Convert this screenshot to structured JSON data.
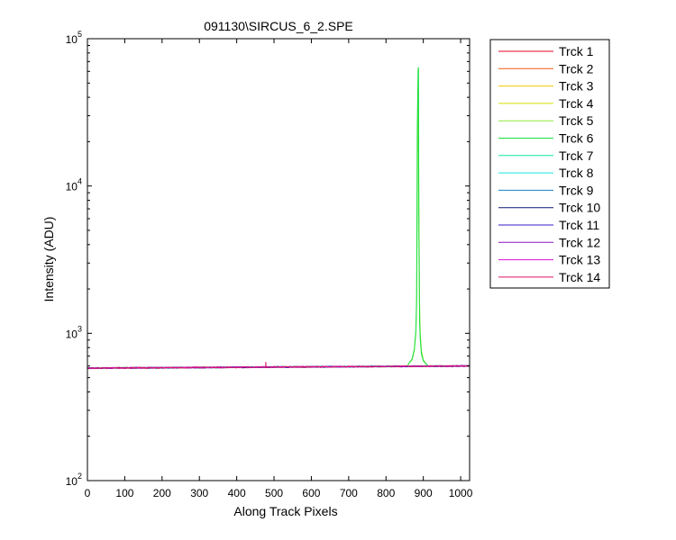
{
  "chart_data": {
    "type": "line",
    "title": "091130\\SIRCUS_6_2.SPE",
    "xlabel": "Along Track Pixels",
    "ylabel": "Intensity (ADU)",
    "xlim": [
      0,
      1024
    ],
    "ylim": [
      100,
      100000
    ],
    "yscale": "log",
    "grid": false,
    "legend_position": "outside-right",
    "x_ticks": [
      0,
      100,
      200,
      300,
      400,
      500,
      600,
      700,
      800,
      900,
      1000
    ],
    "x_tick_labels": [
      "0",
      "100",
      "200",
      "300",
      "400",
      "500",
      "600",
      "700",
      "800",
      "900",
      "1000"
    ],
    "y_ticks": [
      {
        "value": 100,
        "base": "10",
        "exp": "2"
      },
      {
        "value": 1000,
        "base": "10",
        "exp": "3"
      },
      {
        "value": 10000,
        "base": "10",
        "exp": "4"
      },
      {
        "value": 100000,
        "base": "10",
        "exp": "5"
      }
    ],
    "baseline": {
      "x": [
        0,
        1024
      ],
      "y": [
        580,
        600
      ]
    },
    "series": [
      {
        "name": "Trck 1",
        "color": "#e0002a"
      },
      {
        "name": "Trck 2",
        "color": "#ef5a0f"
      },
      {
        "name": "Trck 3",
        "color": "#f2c400"
      },
      {
        "name": "Trck 4",
        "color": "#d8e000"
      },
      {
        "name": "Trck 5",
        "color": "#8ee838",
        "peak": {
          "x": [
            860,
            870,
            876,
            880,
            882,
            884,
            886,
            888,
            890,
            892,
            895,
            900,
            910
          ],
          "y": [
            620,
            660,
            760,
            1000,
            1500,
            8000,
            60000,
            9000,
            1600,
            1000,
            760,
            660,
            610
          ]
        }
      },
      {
        "name": "Trck 6",
        "color": "#18e040",
        "peak": {
          "x": [
            860,
            870,
            876,
            880,
            882,
            884,
            886,
            887,
            888,
            890,
            892,
            895,
            900,
            910
          ],
          "y": [
            620,
            670,
            780,
            1050,
            1700,
            26000,
            62000,
            64000,
            5000,
            1200,
            900,
            720,
            650,
            610
          ]
        }
      },
      {
        "name": "Trck 7",
        "color": "#10e8a0"
      },
      {
        "name": "Trck 8",
        "color": "#18e8e0"
      },
      {
        "name": "Trck 9",
        "color": "#1080c8"
      },
      {
        "name": "Trck 10",
        "color": "#0c1a70"
      },
      {
        "name": "Trck 11",
        "color": "#3818c8"
      },
      {
        "name": "Trck 12",
        "color": "#9010c8"
      },
      {
        "name": "Trck 13",
        "color": "#e010d8"
      },
      {
        "name": "Trck 14",
        "color": "#e0106a",
        "spike": {
          "x": 478,
          "y": 640
        }
      }
    ]
  }
}
